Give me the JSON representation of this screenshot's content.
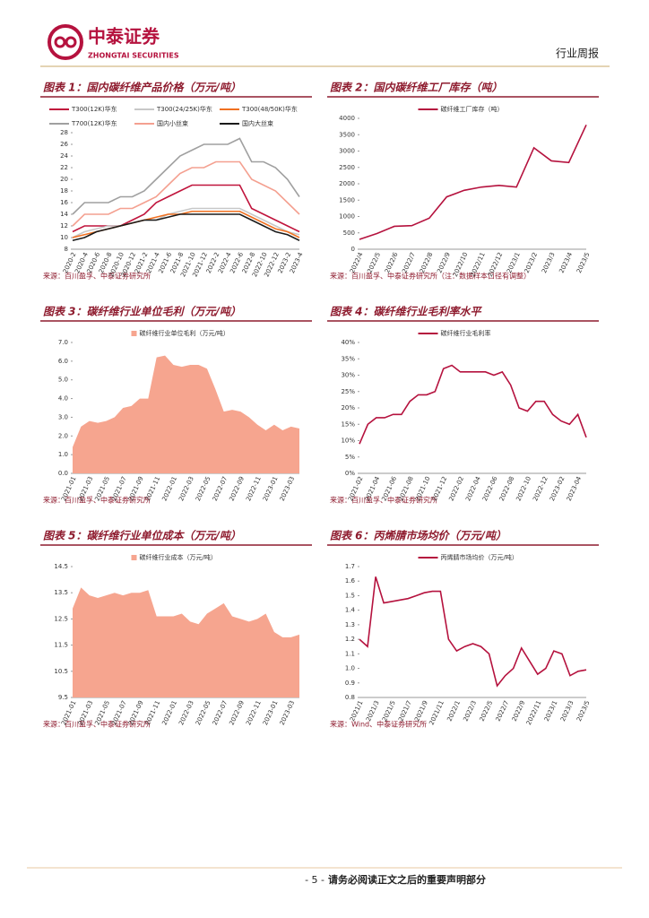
{
  "header": {
    "logo": "中泰证券",
    "logo_en": "ZHONGTAI SECURITIES",
    "report_type": "行业周报"
  },
  "footer": {
    "page": "- 5 -",
    "notice": "请务必阅读正文之后的重要声明部分"
  },
  "chart_data": [
    {
      "type": "line",
      "title": "图表 1：国内碳纤维产品价格（万元/吨）",
      "source": "来源：百川盈孚、中泰证券研究所",
      "categories": [
        "2020-2",
        "2020-4",
        "2020-6",
        "2020-8",
        "2020-10",
        "2020-12",
        "2021-2",
        "2021-4",
        "2021-6",
        "2021-8",
        "2021-10",
        "2021-12",
        "2022-2",
        "2022-4",
        "2022-6",
        "2022-8",
        "2022-10",
        "2022-12",
        "2023-2",
        "2023-4"
      ],
      "series": [
        {
          "name": "T300(12K)华东",
          "color": "#c0143c",
          "values": [
            11,
            12,
            12,
            12,
            12,
            13,
            14,
            16,
            17,
            18,
            19,
            19,
            19,
            19,
            19,
            15,
            14,
            13,
            12,
            11
          ]
        },
        {
          "name": "T300(24/25K)华东",
          "color": "#c8c8c8",
          "values": [
            10,
            11,
            11.5,
            12,
            12,
            12.5,
            13,
            13,
            14,
            14.5,
            15,
            15,
            15,
            15,
            15,
            14,
            13,
            12,
            11,
            10.5
          ]
        },
        {
          "name": "T300(48/50K)华东",
          "color": "#f07020",
          "values": [
            10,
            10.5,
            11,
            11.5,
            12,
            12.5,
            13,
            13.5,
            14,
            14,
            14.5,
            14.5,
            14.5,
            14.5,
            14.5,
            13.5,
            12.5,
            11.5,
            11,
            10
          ]
        },
        {
          "name": "T700(12K)华东",
          "color": "#a0a0a0",
          "values": [
            14,
            16,
            16,
            16,
            17,
            17,
            18,
            20,
            22,
            24,
            25,
            26,
            26,
            26,
            27,
            23,
            23,
            22,
            20,
            17
          ]
        },
        {
          "name": "国内小丝束",
          "color": "#f4a090",
          "values": [
            12,
            14,
            14,
            14,
            15,
            15,
            16,
            17,
            19,
            21,
            22,
            22,
            23,
            23,
            23,
            20,
            19,
            18,
            16,
            14
          ]
        },
        {
          "name": "国内大丝束",
          "color": "#1a1a1a",
          "values": [
            9.5,
            10,
            11,
            11.5,
            12,
            12.5,
            13,
            13,
            13.5,
            14,
            14,
            14,
            14,
            14,
            14,
            13,
            12,
            11,
            10.5,
            9.5
          ]
        }
      ],
      "ylim": [
        8,
        28
      ],
      "yticks": [
        8,
        10,
        12,
        14,
        16,
        18,
        20,
        22,
        24,
        26,
        28
      ],
      "grid": false
    },
    {
      "type": "line",
      "title": "图表 2：国内碳纤维工厂库存（吨）",
      "source": "来源：百川盈孚、中泰证券研究所（注：数据样本口径有调整）",
      "categories": [
        "2022/4",
        "2022/5",
        "2022/6",
        "2022/7",
        "2022/8",
        "2022/9",
        "2022/10",
        "2022/11",
        "2022/12",
        "2023/1",
        "2023/2",
        "2023/3",
        "2023/4",
        "2023/5"
      ],
      "series": [
        {
          "name": "碳纤维工厂库存（吨）",
          "color": "#b5123e",
          "values": [
            300,
            480,
            700,
            720,
            950,
            1600,
            1800,
            1900,
            1950,
            1900,
            3100,
            2700,
            2650,
            3800
          ]
        }
      ],
      "ylim": [
        0,
        4000
      ],
      "yticks": [
        0,
        500,
        1000,
        1500,
        2000,
        2500,
        3000,
        3500,
        4000
      ],
      "grid": false
    },
    {
      "type": "area",
      "title": "图表 3：碳纤维行业单位毛利（万元/吨）",
      "source": "来源：百川盈孚、中泰证券研究所",
      "categories": [
        "2021-01",
        null,
        "2021-03",
        null,
        "2021-05",
        null,
        "2021-07",
        null,
        "2021-09",
        null,
        "2021-11",
        null,
        "2022-01",
        null,
        "2022-03",
        null,
        "2022-05",
        null,
        "2022-07",
        null,
        "2022-09",
        null,
        "2022-11",
        null,
        "2023-01",
        null,
        "2023-03",
        null
      ],
      "series": [
        {
          "name": "碳纤维行业单位毛利（万元/吨）",
          "color": "#f6a58f",
          "values": [
            1.4,
            2.5,
            2.8,
            2.7,
            2.8,
            3.0,
            3.5,
            3.6,
            4.0,
            4.0,
            6.2,
            6.3,
            5.8,
            5.7,
            5.8,
            5.8,
            5.6,
            4.5,
            3.3,
            3.4,
            3.3,
            3.0,
            2.6,
            2.3,
            2.6,
            2.3,
            2.5,
            2.4
          ]
        }
      ],
      "ylim": [
        0,
        7
      ],
      "yticks": [
        {
          "value": 0,
          "label": "0.0"
        },
        {
          "value": 1,
          "label": "1.0"
        },
        {
          "value": 2,
          "label": "2.0"
        },
        {
          "value": 3,
          "label": "3.0"
        },
        {
          "value": 4,
          "label": "4.0"
        },
        {
          "value": 5,
          "label": "5.0"
        },
        {
          "value": 6,
          "label": "6.0"
        },
        {
          "value": 7,
          "label": "7.0"
        }
      ],
      "grid": false
    },
    {
      "type": "line",
      "title": "图表 4：碳纤维行业毛利率水平",
      "source": "来源：百川盈孚、中泰证券研究所",
      "categories": [
        "2021-02",
        null,
        "2021-04",
        null,
        "2021-06",
        null,
        "2021-08",
        null,
        "2021-10",
        null,
        "2021-12",
        null,
        "2022-02",
        null,
        "2022-04",
        null,
        "2022-06",
        null,
        "2022-08",
        null,
        "2022-10",
        null,
        "2022-12",
        null,
        "2023-02",
        null,
        "2023-04",
        null
      ],
      "series": [
        {
          "name": "碳纤维行业毛利率",
          "color": "#b5123e",
          "values": [
            9,
            15,
            17,
            17,
            18,
            18,
            22,
            24,
            24,
            25,
            32,
            33,
            31,
            31,
            31,
            31,
            30,
            31,
            27,
            20,
            19,
            22,
            22,
            18,
            16,
            15,
            18,
            11
          ]
        }
      ],
      "ylim": [
        0,
        40
      ],
      "yticks": [
        {
          "value": 0,
          "label": "0%"
        },
        {
          "value": 5,
          "label": "5%"
        },
        {
          "value": 10,
          "label": "10%"
        },
        {
          "value": 15,
          "label": "15%"
        },
        {
          "value": 20,
          "label": "20%"
        },
        {
          "value": 25,
          "label": "25%"
        },
        {
          "value": 30,
          "label": "30%"
        },
        {
          "value": 35,
          "label": "35%"
        },
        {
          "value": 40,
          "label": "40%"
        }
      ],
      "grid": false
    },
    {
      "type": "area",
      "title": "图表 5：碳纤维行业单位成本（万元/吨）",
      "source": "来源：百川盈孚、中泰证券研究所",
      "categories": [
        "2021-01",
        null,
        "2021-03",
        null,
        "2021-05",
        null,
        "2021-07",
        null,
        "2021-09",
        null,
        "2021-11",
        null,
        "2022-01",
        null,
        "2022-03",
        null,
        "2022-05",
        null,
        "2022-07",
        null,
        "2022-09",
        null,
        "2022-11",
        null,
        "2023-01",
        null,
        "2023-03",
        null
      ],
      "series": [
        {
          "name": "碳纤维行业成本（万元/吨）",
          "color": "#f6a58f",
          "values": [
            12.9,
            13.7,
            13.4,
            13.3,
            13.4,
            13.5,
            13.4,
            13.5,
            13.5,
            13.6,
            12.6,
            12.6,
            12.6,
            12.7,
            12.4,
            12.3,
            12.7,
            12.9,
            13.1,
            12.6,
            12.5,
            12.4,
            12.5,
            12.7,
            12.0,
            11.8,
            11.8,
            11.9
          ]
        }
      ],
      "ylim": [
        9.5,
        14.5
      ],
      "yticks": [
        9.5,
        10.5,
        11.5,
        12.5,
        13.5,
        14.5
      ],
      "grid": false
    },
    {
      "type": "line",
      "title": "图表 6：丙烯腈市场均价（万元/吨）",
      "source": "来源：Wind、中泰证券研究所",
      "categories": [
        "2021/1",
        null,
        "2021/3",
        null,
        "2021/5",
        null,
        "2021/7",
        null,
        "2021/9",
        null,
        "2021/11",
        null,
        "2022/1",
        null,
        "2022/3",
        null,
        "2022/5",
        null,
        "2022/7",
        null,
        "2022/9",
        null,
        "2022/11",
        null,
        "2023/1",
        null,
        "2023/3",
        null,
        "2023/5"
      ],
      "series": [
        {
          "name": "丙烯腈市场均价（万元/吨）",
          "color": "#b5123e",
          "values": [
            1.2,
            1.15,
            1.63,
            1.45,
            1.46,
            1.47,
            1.48,
            1.5,
            1.52,
            1.53,
            1.53,
            1.2,
            1.12,
            1.15,
            1.17,
            1.15,
            1.1,
            0.88,
            0.95,
            1.0,
            1.14,
            1.05,
            0.96,
            1.0,
            1.12,
            1.1,
            0.95,
            0.98,
            0.99
          ]
        }
      ],
      "ylim": [
        0.8,
        1.7
      ],
      "yticks": [
        0.8,
        0.9,
        {
          "value": 1,
          "label": "1.0"
        },
        1.1,
        1.2,
        1.3,
        1.4,
        1.5,
        1.6,
        1.7
      ],
      "grid": false
    }
  ]
}
